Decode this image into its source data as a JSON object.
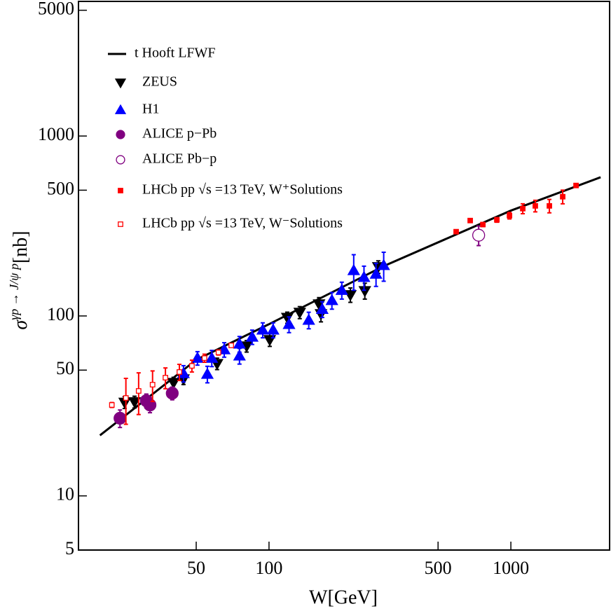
{
  "chart_data": {
    "type": "scatter",
    "xlabel": "W[GeV]",
    "ylabel": {
      "symbol": "σ",
      "superscript": "γp → J/ψ p",
      "unit": "[nb]"
    },
    "xscale": "log",
    "yscale": "log",
    "xlim": [
      16.3,
      2560
    ],
    "ylim": [
      5,
      5600
    ],
    "xticks": [
      50,
      100,
      500,
      1000
    ],
    "yticks": [
      5,
      10,
      50,
      100,
      500,
      1000,
      5000
    ],
    "legend": "upper left",
    "line": {
      "name": "t Hooft LFWF",
      "color": "#000000",
      "x": [
        20,
        50,
        100,
        300,
        1000,
        2350
      ],
      "values": [
        21.7,
        57,
        90,
        190,
        385,
        590
      ]
    },
    "series": [
      {
        "name": "ZEUS",
        "color": "#000000",
        "marker": "triangle-down",
        "filled": true,
        "x": [
          25.3,
          27.8,
          40.3,
          44.3,
          61,
          80.8,
          100.7,
          119,
          134,
          161,
          164,
          217,
          249,
          283
        ],
        "values": [
          33.1,
          33.3,
          42.6,
          44.6,
          54.3,
          68,
          73.7,
          98,
          104.6,
          116.5,
          102.7,
          131,
          138,
          187.5
        ],
        "errors": [
          2.5,
          2.5,
          3,
          3,
          4,
          5,
          6,
          7,
          8,
          10,
          10,
          12,
          14,
          15
        ]
      },
      {
        "name": "H1",
        "color": "#0000ff",
        "marker": "triangle-up",
        "filled": true,
        "x": [
          44.3,
          50.6,
          55.6,
          58,
          65.3,
          75.5,
          75.5,
          85.2,
          94.2,
          104,
          121,
          146,
          166,
          182,
          200,
          224,
          247,
          277,
          298
        ],
        "values": [
          47.9,
          58.3,
          47.5,
          58.3,
          65,
          69.9,
          60,
          76.4,
          83.6,
          83.6,
          89.8,
          94.8,
          109,
          122,
          139,
          179,
          164,
          171,
          191
        ],
        "errors": [
          5,
          5,
          5,
          6,
          6,
          7,
          6,
          7,
          8,
          8,
          9,
          10,
          11,
          13,
          15,
          40,
          25,
          25,
          35
        ]
      },
      {
        "name": "ALICE p−Pb",
        "color": "#800080",
        "marker": "circle",
        "filled": true,
        "x": [
          24.2,
          31.1,
          32.2,
          39.8
        ],
        "values": [
          27,
          33.8,
          32,
          37.2
        ],
        "errors": [
          3,
          3,
          3,
          3
        ]
      },
      {
        "name": "ALICE Pb−p",
        "color": "#800080",
        "marker": "circle",
        "filled": false,
        "x": [
          736
        ],
        "values": [
          281
        ],
        "errors": [
          35
        ]
      },
      {
        "name": "LHCb pp √s =13 TeV, W⁺Solutions",
        "color": "#ff0000",
        "marker": "square",
        "filled": true,
        "x": [
          594,
          679,
          766,
          875,
          987,
          1120,
          1262,
          1443,
          1638,
          1860
        ],
        "values": [
          294,
          339,
          322,
          342,
          361,
          395,
          409,
          409,
          460,
          531
        ],
        "errors": [
          6,
          8,
          8,
          10,
          15,
          25,
          30,
          35,
          40,
          12
        ]
      },
      {
        "name": "LHCb pp √s =13 TeV, W⁻Solutions",
        "color": "#ff0000",
        "marker": "square",
        "filled": false,
        "x": [
          22.4,
          25.6,
          28.9,
          33,
          37.3,
          42.6,
          48,
          54.1,
          61.8,
          69.8
        ],
        "values": [
          32,
          35,
          38.3,
          41.5,
          45.4,
          48.8,
          52.8,
          58.3,
          62.7,
          68.6
        ],
        "errors": [
          1,
          10,
          10,
          8,
          6,
          5,
          4,
          3,
          2,
          1.5
        ]
      }
    ]
  }
}
